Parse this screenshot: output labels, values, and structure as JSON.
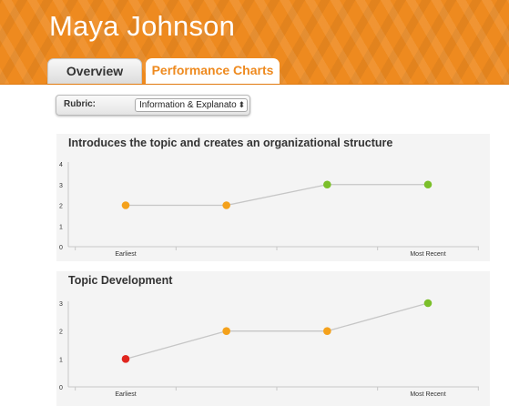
{
  "header": {
    "student_name": "Maya Johnson",
    "tabs": [
      {
        "label": "Overview",
        "active": false
      },
      {
        "label": "Performance Charts",
        "active": true
      }
    ],
    "accent_color": "#ee8a1f"
  },
  "rubric": {
    "label": "Rubric:",
    "selected": "Information & Explanatory"
  },
  "chart_data": [
    {
      "type": "line",
      "title": "Introduces the topic and creates an organizational structure",
      "x": [
        "Earliest",
        "",
        "",
        "Most Recent"
      ],
      "values": [
        2,
        2,
        3,
        3
      ],
      "point_colors": [
        "#f4a11b",
        "#f4a11b",
        "#7bbf2a",
        "#7bbf2a"
      ],
      "ylim": [
        0,
        4
      ],
      "yticks": [
        0,
        1,
        2,
        3,
        4
      ],
      "xlabel": "",
      "ylabel": "",
      "grid": false
    },
    {
      "type": "line",
      "title": "Topic Development",
      "x": [
        "Earliest",
        "",
        "",
        "Most Recent"
      ],
      "values": [
        1,
        2,
        2,
        3
      ],
      "point_colors": [
        "#e0261f",
        "#f4a11b",
        "#f4a11b",
        "#7bbf2a"
      ],
      "ylim": [
        0,
        3
      ],
      "yticks": [
        0,
        1,
        2,
        3
      ],
      "xlabel": "",
      "ylabel": "",
      "grid": false
    }
  ]
}
